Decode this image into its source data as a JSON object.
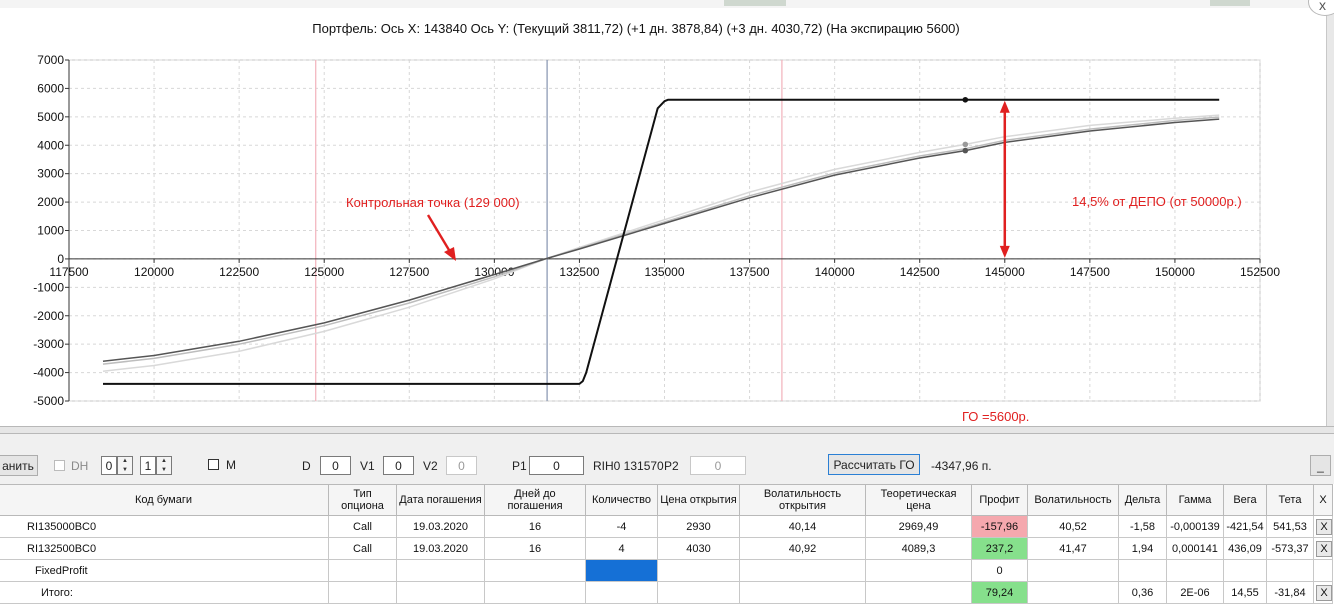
{
  "header": {
    "close_label": "x",
    "title": "Портфель: Ось X: 143840 Ось Y:  (Текущий 3811,72)  (+1 дн. 3878,84)  (+3 дн. 4030,72)  (На экспирацию 5600)"
  },
  "chart_data": {
    "type": "line",
    "title": "Портфель: Ось X: 143840 Ось Y:  (Текущий 3811,72)  (+1 дн. 3878,84)  (+3 дн. 4030,72)  (На экспирацию 5600)",
    "xlim": [
      117500,
      152500
    ],
    "ylim": [
      -5000,
      7000
    ],
    "x_ticks": [
      117500,
      120000,
      122500,
      125000,
      127500,
      130000,
      132500,
      135000,
      137500,
      140000,
      142500,
      145000,
      147500,
      150000,
      152500
    ],
    "x_tick_labels": [
      "117500",
      "120000",
      "122500",
      "125000",
      "127500",
      "130000",
      "132500",
      "135000",
      "137500",
      "140000",
      "142500",
      "145000",
      "147500",
      "150000",
      "152500"
    ],
    "y_ticks": [
      -5000,
      -4000,
      -3000,
      -2000,
      -1000,
      0,
      1000,
      2000,
      3000,
      4000,
      5000,
      6000,
      7000
    ],
    "y_tick_labels": [
      "-5000",
      "-4000",
      "-3000",
      "-2000",
      "-1000",
      "0",
      "1000",
      "2000",
      "3000",
      "4000",
      "5000",
      "6000",
      "7000"
    ],
    "grid": true,
    "series": [
      {
        "color": "#111111",
        "x": [
          118500,
          132500,
          132600,
          132700,
          134800,
          135000,
          135100,
          151300
        ],
        "y": [
          -4400,
          -4400,
          -4300,
          -4000,
          5300,
          5550,
          5600,
          5600
        ]
      },
      {
        "color": "#555555",
        "x": [
          118500,
          120000,
          122500,
          125000,
          127500,
          130000,
          131500,
          132500,
          135000,
          137500,
          140000,
          142500,
          143840,
          145000,
          147500,
          150000,
          151300
        ],
        "y": [
          -3600,
          -3400,
          -2900,
          -2250,
          -1450,
          -550,
          0,
          350,
          1250,
          2150,
          2950,
          3550,
          3812,
          4100,
          4500,
          4800,
          4920
        ]
      },
      {
        "color": "#bdbdbd",
        "x": [
          118500,
          120000,
          122500,
          125000,
          127500,
          130000,
          131500,
          132500,
          135000,
          137500,
          140000,
          142500,
          143840,
          145000,
          147500,
          150000,
          151300
        ],
        "y": [
          -3700,
          -3500,
          -3000,
          -2350,
          -1550,
          -630,
          0,
          370,
          1300,
          2220,
          3020,
          3620,
          3879,
          4170,
          4570,
          4870,
          4990
        ]
      },
      {
        "color": "#d9d9d9",
        "x": [
          118500,
          120000,
          122500,
          125000,
          127500,
          130000,
          131500,
          132500,
          135000,
          137500,
          140000,
          142500,
          143840,
          145000,
          147500,
          150000,
          151300
        ],
        "y": [
          -3950,
          -3750,
          -3250,
          -2550,
          -1700,
          -700,
          0,
          400,
          1380,
          2350,
          3150,
          3750,
          4031,
          4300,
          4700,
          4950,
          5060
        ]
      }
    ],
    "markers": [
      {
        "x": 143840,
        "y": 5600,
        "color": "#111111"
      },
      {
        "x": 143840,
        "y": 3812,
        "color": "#555555"
      },
      {
        "x": 143840,
        "y": 4031,
        "color": "#9a9a9a"
      }
    ],
    "vlines": [
      {
        "x": 124750,
        "color": "#f3b7c0"
      },
      {
        "x": 131550,
        "color": "#8e9bb5"
      },
      {
        "x": 138450,
        "color": "#f3b7c0"
      }
    ],
    "annotations": {
      "control_point": {
        "text": "Контрольная точка (129 000)",
        "x": 129000,
        "color": "#e02020"
      },
      "depo": {
        "text": "14,5% от ДЕПО (от 50000р.)",
        "x": 145000,
        "y_from": 0,
        "y_to": 5600,
        "color": "#e02020"
      },
      "go": {
        "text": "ГО =5600р.",
        "color": "#e02020"
      }
    }
  },
  "toolbar": {
    "save_label": "анить",
    "dh_label": "DH",
    "spin1_value": "0",
    "spin2_value": "1",
    "m_label": "M",
    "d_label": "D",
    "d_value": "0",
    "v1_label": "V1",
    "v1_value": "0",
    "v2_label": "V2",
    "v2_value": "0",
    "p1_label": "P1",
    "p1_value": "0",
    "instrument": "RIH0 131570",
    "p2_label": "P2",
    "p2_value": "0",
    "calc_label": "Рассчитать ГО",
    "calc_result": "-4347,96 п.",
    "minimize_label": "_"
  },
  "table": {
    "columns": [
      "Код бумаги",
      "Тип опциона",
      "Дата погашения",
      "Дней до погашения",
      "Количество",
      "Цена открытия",
      "Волатильность открытия",
      "Теоретическая цена",
      "Профит",
      "Волатильность",
      "Дельта",
      "Гамма",
      "Вега",
      "Тета",
      "X"
    ],
    "rows": [
      [
        "RI135000BC0",
        "Call",
        "19.03.2020",
        "16",
        "-4",
        "2930",
        "40,14",
        "2969,49",
        "-157,96",
        "40,52",
        "-1,58",
        "-0,000139",
        "-421,54",
        "541,53",
        "X"
      ],
      [
        "RI132500BC0",
        "Call",
        "19.03.2020",
        "16",
        "4",
        "4030",
        "40,92",
        "4089,3",
        "237,2",
        "41,47",
        "1,94",
        "0,000141",
        "436,09",
        "-573,37",
        "X"
      ],
      [
        "FixedProfit",
        "",
        "",
        "",
        "",
        "",
        "",
        "",
        "0",
        "",
        "",
        "",
        "",
        "",
        ""
      ],
      [
        "Итого:",
        "",
        "",
        "",
        "",
        "",
        "",
        "",
        "79,24",
        "",
        "0,36",
        "2E-06",
        "14,55",
        "-31,84",
        "X"
      ]
    ]
  }
}
